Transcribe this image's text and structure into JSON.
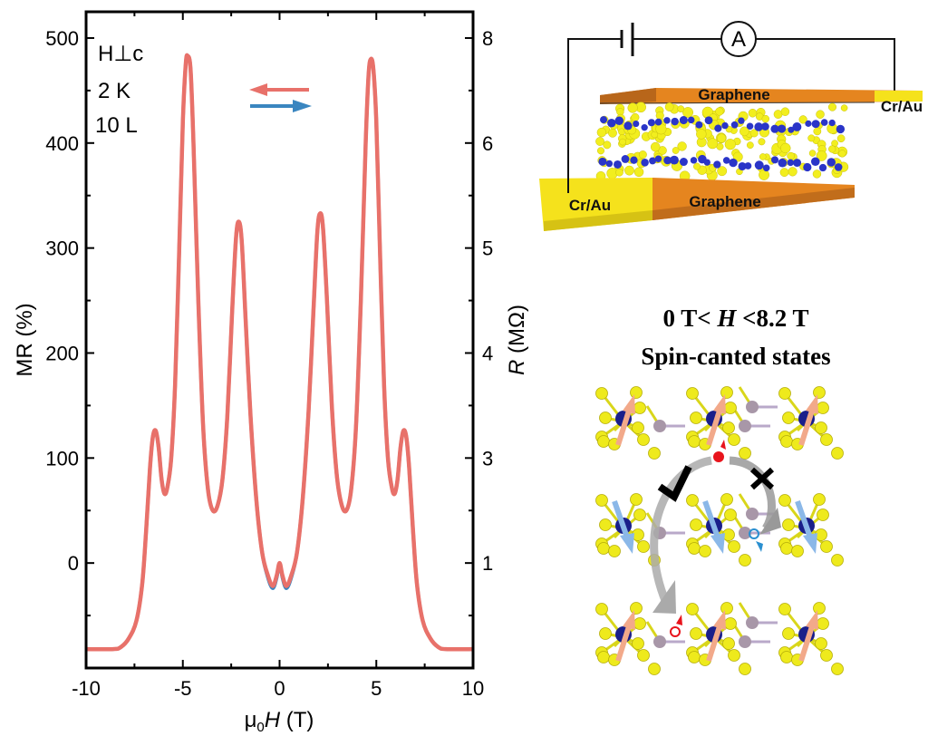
{
  "chart_data": {
    "type": "line",
    "xlabel_prefix": "μ",
    "xlabel_sub": "0",
    "xlabel_var": "H",
    "xlabel_unit": " (T)",
    "ylabel": "MR (%)",
    "ylabel_right_var": "R",
    "ylabel_right_unit": " (MΩ)",
    "xlim": [
      -10,
      10
    ],
    "ylim": [
      -100,
      525
    ],
    "x_ticks": [
      "-10",
      "-5",
      "0",
      "5",
      "10"
    ],
    "x_tick_values": [
      -10,
      -5,
      0,
      5,
      10
    ],
    "y_ticks": [
      "0",
      "100",
      "200",
      "300",
      "400",
      "500"
    ],
    "y_tick_values": [
      0,
      100,
      200,
      300,
      400,
      500
    ],
    "y_right_ticks": [
      "1",
      "3",
      "4",
      "5",
      "6",
      "8"
    ],
    "y_right_tick_positions_mr": [
      0,
      100,
      200,
      300,
      400,
      500
    ],
    "grid": false,
    "annotations": [
      "H⊥c",
      "2 K",
      "10 L"
    ],
    "sweep_arrow_colors": [
      "#e8716a",
      "#3a86c0"
    ],
    "series": [
      {
        "color": "#3a86c0",
        "x": [
          -10,
          -8.6,
          -8.2,
          -7.8,
          -7.4,
          -7.1,
          -6.9,
          -6.7,
          -6.55,
          -6.4,
          -6.25,
          -6.1,
          -5.95,
          -5.8,
          -5.6,
          -5.4,
          -5.2,
          -5.0,
          -4.85,
          -4.75,
          -4.6,
          -4.45,
          -4.2,
          -3.95,
          -3.7,
          -3.45,
          -3.2,
          -2.95,
          -2.7,
          -2.45,
          -2.25,
          -2.1,
          -1.95,
          -1.75,
          -1.5,
          -1.2,
          -0.9,
          -0.6,
          -0.35,
          -0.15,
          0,
          0.15,
          0.35,
          0.6,
          0.9,
          1.2,
          1.5,
          1.75,
          1.95,
          2.1,
          2.25,
          2.45,
          2.7,
          2.95,
          3.2,
          3.45,
          3.7,
          3.95,
          4.2,
          4.45,
          4.6,
          4.72,
          4.85,
          5.0,
          5.2,
          5.4,
          5.6,
          5.8,
          5.95,
          6.1,
          6.25,
          6.4,
          6.55,
          6.7,
          6.9,
          7.1,
          7.4,
          7.8,
          8.2,
          8.6,
          10
        ],
        "y": [
          -82,
          -82,
          -80,
          -72,
          -55,
          -20,
          30,
          90,
          120,
          126,
          110,
          80,
          66,
          72,
          100,
          170,
          290,
          420,
          475,
          483,
          470,
          400,
          250,
          130,
          70,
          50,
          55,
          80,
          140,
          240,
          310,
          325,
          305,
          230,
          140,
          60,
          10,
          -14,
          -24,
          -14,
          0,
          -14,
          -24,
          -14,
          10,
          62,
          145,
          240,
          315,
          333,
          318,
          250,
          150,
          85,
          56,
          50,
          70,
          130,
          250,
          400,
          465,
          480,
          470,
          420,
          290,
          170,
          100,
          72,
          66,
          80,
          110,
          126,
          120,
          90,
          30,
          -20,
          -55,
          -72,
          -80,
          -82,
          -82
        ]
      },
      {
        "color": "#e8716a",
        "x": [
          -10,
          -8.6,
          -8.2,
          -7.8,
          -7.4,
          -7.1,
          -6.9,
          -6.7,
          -6.55,
          -6.4,
          -6.25,
          -6.1,
          -5.95,
          -5.8,
          -5.6,
          -5.4,
          -5.2,
          -5.0,
          -4.85,
          -4.75,
          -4.6,
          -4.45,
          -4.2,
          -3.95,
          -3.7,
          -3.45,
          -3.2,
          -2.95,
          -2.7,
          -2.45,
          -2.25,
          -2.1,
          -1.95,
          -1.75,
          -1.5,
          -1.2,
          -0.9,
          -0.6,
          -0.35,
          -0.15,
          0,
          0.15,
          0.35,
          0.6,
          0.9,
          1.2,
          1.5,
          1.75,
          1.95,
          2.1,
          2.25,
          2.45,
          2.7,
          2.95,
          3.2,
          3.45,
          3.7,
          3.95,
          4.2,
          4.45,
          4.6,
          4.72,
          4.85,
          5.0,
          5.2,
          5.4,
          5.6,
          5.8,
          5.95,
          6.1,
          6.25,
          6.4,
          6.55,
          6.7,
          6.9,
          7.1,
          7.4,
          7.8,
          8.2,
          8.6,
          10
        ],
        "y": [
          -82,
          -82,
          -80,
          -72,
          -55,
          -20,
          30,
          90,
          120,
          126,
          110,
          80,
          66,
          72,
          100,
          170,
          290,
          420,
          475,
          483,
          470,
          400,
          250,
          130,
          70,
          50,
          55,
          80,
          140,
          240,
          310,
          325,
          305,
          230,
          140,
          60,
          10,
          -12,
          -22,
          -12,
          0,
          -12,
          -22,
          -12,
          10,
          62,
          145,
          240,
          315,
          333,
          318,
          250,
          150,
          85,
          56,
          50,
          70,
          130,
          250,
          400,
          465,
          480,
          470,
          420,
          290,
          170,
          100,
          72,
          66,
          80,
          110,
          126,
          120,
          90,
          30,
          -20,
          -55,
          -72,
          -80,
          -82,
          -82
        ]
      }
    ]
  },
  "device_schematic": {
    "ammeter_label": "A",
    "top_layer_label": "Graphene",
    "top_contact_label": "Cr/Au",
    "bottom_contact_label": "Cr/Au",
    "bottom_layer_label": "Graphene",
    "colors": {
      "graphene": "#e5851f",
      "contact": "#f5e21c",
      "atom_s": "#f2ee1e",
      "atom_cr": "#2a35c8"
    }
  },
  "spin_panel": {
    "title_prefix": "0 T< ",
    "title_var": "H",
    "title_suffix": " <8.2 T",
    "subtitle": "Spin-canted states",
    "allowed_mark": "check-icon",
    "forbidden_mark": "cross-icon",
    "colors": {
      "spin_up": "#f2a98a",
      "spin_down": "#8bb8e8",
      "electron_up": "#e8141c",
      "electron_down": "#2a8fd0"
    }
  }
}
